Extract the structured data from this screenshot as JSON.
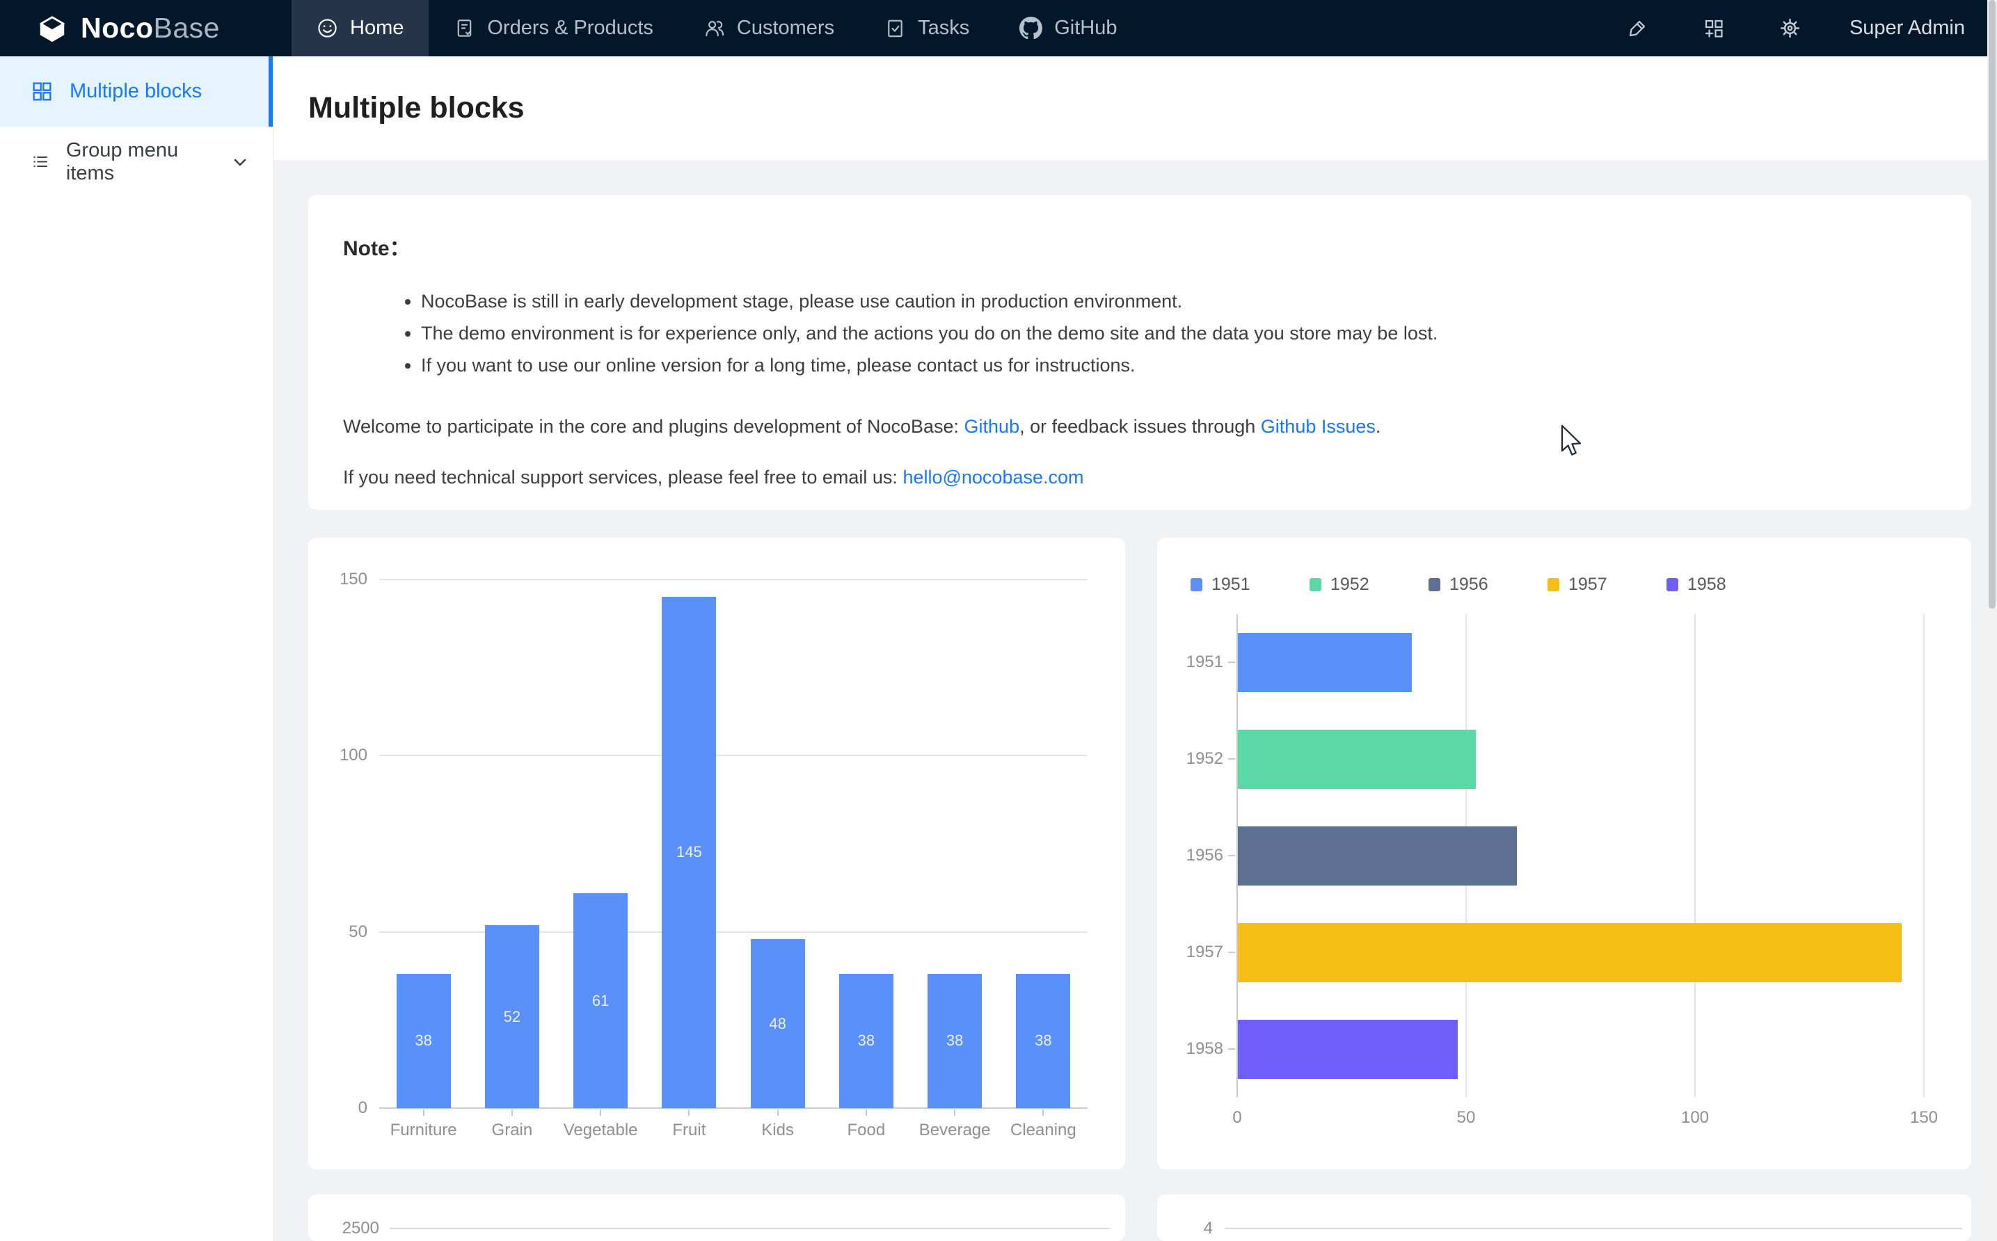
{
  "theme": {
    "accent": "#1677ff",
    "navbar_bg": "#021729",
    "navbar_active_bg": "#263449",
    "content_bg": "#f0f2f5",
    "axis_text": "#8f8f8f",
    "grid_line": "#e4e4e4",
    "axis_line": "#c9c9c9"
  },
  "navbar": {
    "logo_noco": "Noco",
    "logo_base": "Base",
    "tabs": [
      {
        "label": "Home",
        "icon": "smiley-icon",
        "active": true
      },
      {
        "label": "Orders & Products",
        "icon": "orders-icon",
        "active": false
      },
      {
        "label": "Customers",
        "icon": "customers-icon",
        "active": false
      },
      {
        "label": "Tasks",
        "icon": "tasks-icon",
        "active": false
      },
      {
        "label": "GitHub",
        "icon": "github-icon",
        "active": false
      }
    ],
    "user_label": "Super Admin"
  },
  "sidebar": {
    "items": [
      {
        "label": "Multiple blocks",
        "icon": "grid-icon",
        "active": true
      },
      {
        "label": "Group menu items",
        "icon": "list-icon",
        "active": false
      }
    ]
  },
  "page": {
    "title": "Multiple blocks"
  },
  "note": {
    "heading": "Note：",
    "bullets": [
      "NocoBase is still in early development stage, please use caution in production environment.",
      "The demo environment is for experience only, and the actions you do on the demo site and the data you store may be lost.",
      "If you want to use our online version for a long time, please contact us for instructions."
    ],
    "p1_pre": "Welcome to participate in the core and plugins development of NocoBase: ",
    "p1_link1": "Github",
    "p1_mid": ", or feedback issues through ",
    "p1_link2": "Github Issues",
    "p1_post": ".",
    "p2_pre": "If you need technical support services, please feel free to email us: ",
    "p2_link": "hello@nocobase.com"
  },
  "chart_data": [
    {
      "type": "bar",
      "title": "",
      "categories": [
        "Furniture",
        "Grain",
        "Vegetable",
        "Fruit",
        "Kids",
        "Food",
        "Beverage",
        "Cleaning"
      ],
      "values": [
        38,
        52,
        61,
        145,
        48,
        38,
        38,
        38
      ],
      "bar_color": "#5B8FF9",
      "yticks": [
        0,
        50,
        100,
        150
      ],
      "ylim": [
        0,
        150
      ],
      "grid": true,
      "value_labels": true,
      "legend_position": "none"
    },
    {
      "type": "bar-horizontal",
      "title": "",
      "categories": [
        "1951",
        "1952",
        "1956",
        "1957",
        "1958"
      ],
      "values": [
        38,
        52,
        61,
        145,
        48
      ],
      "colors": [
        "#5B8FF9",
        "#5AD8A6",
        "#5D7092",
        "#F6BD16",
        "#6F5EF9"
      ],
      "legend": [
        "1951",
        "1952",
        "1956",
        "1957",
        "1958"
      ],
      "legend_position": "top",
      "xticks": [
        0,
        50,
        100,
        150
      ],
      "xlim": [
        0,
        150
      ],
      "grid": true
    },
    {
      "type": "bar",
      "partial": true,
      "visible_tick": "2500",
      "note": "only top tick and gridline visible at viewport bottom"
    },
    {
      "type": "bar",
      "partial": true,
      "visible_tick": "4",
      "note": "only top tick and gridline visible at viewport bottom"
    }
  ]
}
